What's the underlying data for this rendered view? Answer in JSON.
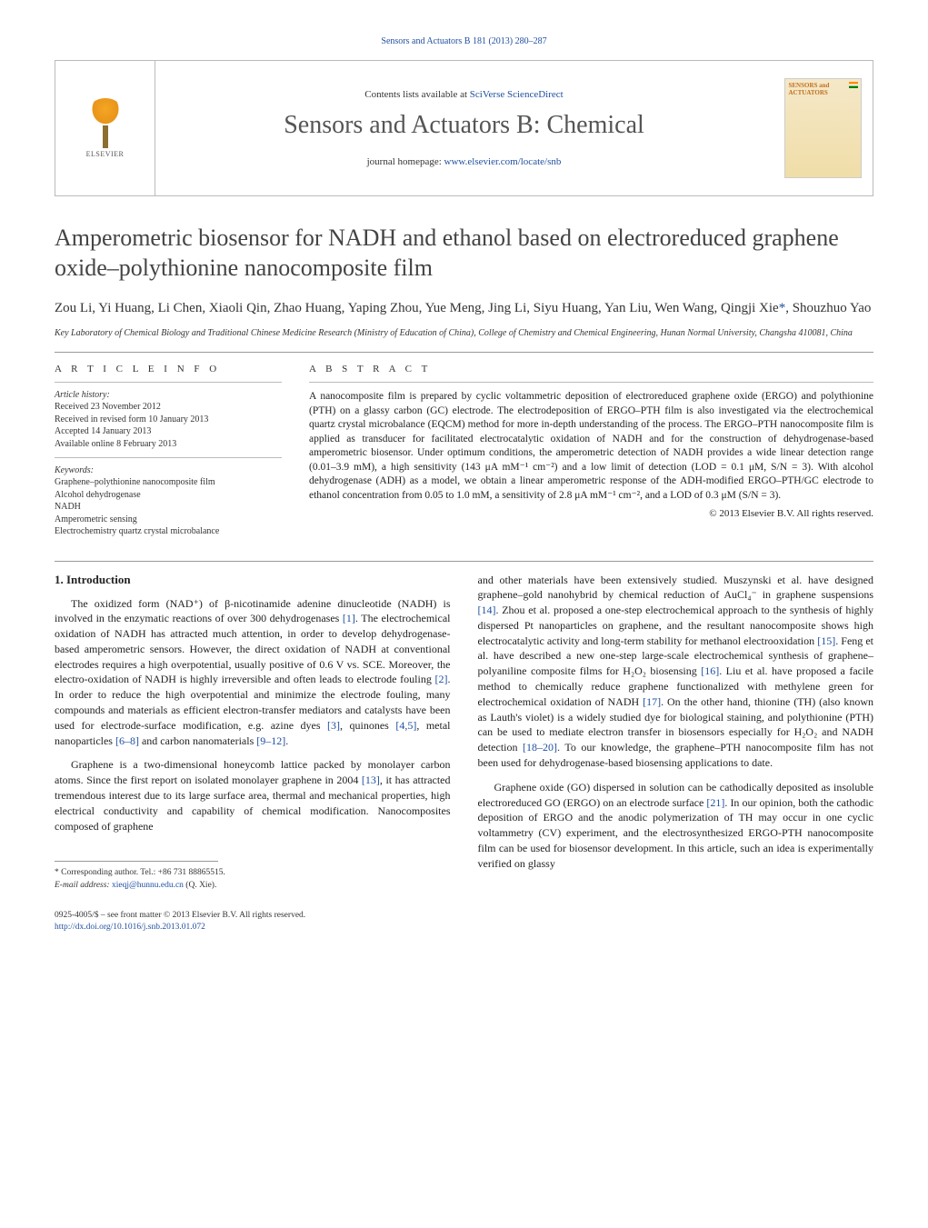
{
  "header": {
    "citation": "Sensors and Actuators B 181 (2013) 280–287",
    "contents_prefix": "Contents lists available at ",
    "contents_link": "SciVerse ScienceDirect",
    "journal_name": "Sensors and Actuators B: Chemical",
    "homepage_prefix": "journal homepage: ",
    "homepage_url": "www.elsevier.com/locate/snb",
    "elsevier_label": "ELSEVIER",
    "cover_title": "SENSORS and ACTUATORS"
  },
  "title": "Amperometric biosensor for NADH and ethanol based on electroreduced graphene oxide–polythionine nanocomposite film",
  "authors": "Zou Li, Yi Huang, Li Chen, Xiaoli Qin, Zhao Huang, Yaping Zhou, Yue Meng, Jing Li, Siyu Huang, Yan Liu, Wen Wang, Qingji Xie",
  "corr_author_suffix": "*",
  "authors_tail": ", Shouzhuo Yao",
  "affiliation": "Key Laboratory of Chemical Biology and Traditional Chinese Medicine Research (Ministry of Education of China), College of Chemistry and Chemical Engineering, Hunan Normal University, Changsha 410081, China",
  "article_info": {
    "heading": "A R T I C L E   I N F O",
    "history_label": "Article history:",
    "received": "Received 23 November 2012",
    "revised": "Received in revised form 10 January 2013",
    "accepted": "Accepted 14 January 2013",
    "online": "Available online 8 February 2013",
    "keywords_label": "Keywords:",
    "kw1": "Graphene–polythionine nanocomposite film",
    "kw2": "Alcohol dehydrogenase",
    "kw3": "NADH",
    "kw4": "Amperometric sensing",
    "kw5": "Electrochemistry quartz crystal microbalance"
  },
  "abstract": {
    "heading": "A B S T R A C T",
    "text": "A nanocomposite film is prepared by cyclic voltammetric deposition of electroreduced graphene oxide (ERGO) and polythionine (PTH) on a glassy carbon (GC) electrode. The electrodeposition of ERGO–PTH film is also investigated via the electrochemical quartz crystal microbalance (EQCM) method for more in-depth understanding of the process. The ERGO–PTH nanocomposite film is applied as transducer for facilitated electrocatalytic oxidation of NADH and for the construction of dehydrogenase-based amperometric biosensor. Under optimum conditions, the amperometric detection of NADH provides a wide linear detection range (0.01–3.9 mM), a high sensitivity (143 μA mM⁻¹ cm⁻²) and a low limit of detection (LOD = 0.1 μM, S/N = 3). With alcohol dehydrogenase (ADH) as a model, we obtain a linear amperometric response of the ADH-modified ERGO–PTH/GC electrode to ethanol concentration from 0.05 to 1.0 mM, a sensitivity of 2.8 μA mM⁻¹ cm⁻², and a LOD of 0.3 μM (S/N = 3).",
    "copyright": "© 2013 Elsevier B.V. All rights reserved."
  },
  "body": {
    "section1_heading": "1. Introduction",
    "p1_a": "The oxidized form (NAD⁺) of β-nicotinamide adenine dinucleotide (NADH) is involved in the enzymatic reactions of over 300 dehydrogenases ",
    "p1_ref1": "[1]",
    "p1_b": ". The electrochemical oxidation of NADH has attracted much attention, in order to develop dehydrogenase-based amperometric sensors. However, the direct oxidation of NADH at conventional electrodes requires a high overpotential, usually positive of 0.6 V vs. SCE. Moreover, the electro-oxidation of NADH is highly irreversible and often leads to electrode fouling ",
    "p1_ref2": "[2]",
    "p1_c": ". In order to reduce the high overpotential and minimize the electrode fouling, many compounds and materials as efficient electron-transfer mediators and catalysts have been used for electrode-surface modification, e.g. azine dyes ",
    "p1_ref3": "[3]",
    "p1_d": ", quinones ",
    "p1_ref4": "[4,5]",
    "p1_e": ", metal nanoparticles ",
    "p1_ref5": "[6–8]",
    "p1_f": " and carbon nanomaterials ",
    "p1_ref6": "[9–12]",
    "p1_g": ".",
    "p2_a": "Graphene is a two-dimensional honeycomb lattice packed by monolayer carbon atoms. Since the first report on isolated monolayer graphene in 2004 ",
    "p2_ref1": "[13]",
    "p2_b": ", it has attracted tremendous interest due to its large surface area, thermal and mechanical properties, high electrical conductivity and capability of chemical modification. Nanocomposites composed of graphene",
    "p3_a": "and other materials have been extensively studied. Muszynski et al. have designed graphene–gold nanohybrid by chemical reduction of AuCl₄⁻ in graphene suspensions ",
    "p3_ref1": "[14]",
    "p3_b": ". Zhou et al. proposed a one-step electrochemical approach to the synthesis of highly dispersed Pt nanoparticles on graphene, and the resultant nanocomposite shows high electrocatalytic activity and long-term stability for methanol electrooxidation ",
    "p3_ref2": "[15]",
    "p3_c": ". Feng et al. have described a new one-step large-scale electrochemical synthesis of graphene–polyaniline composite films for H₂O₂ biosensing ",
    "p3_ref3": "[16]",
    "p3_d": ". Liu et al. have proposed a facile method to chemically reduce graphene functionalized with methylene green for electrochemical oxidation of NADH ",
    "p3_ref4": "[17]",
    "p3_e": ". On the other hand, thionine (TH) (also known as Lauth's violet) is a widely studied dye for biological staining, and polythionine (PTH) can be used to mediate electron transfer in biosensors especially for H₂O₂ and NADH detection ",
    "p3_ref5": "[18–20]",
    "p3_f": ". To our knowledge, the graphene–PTH nanocomposite film has not been used for dehydrogenase-based biosensing applications to date.",
    "p4_a": "Graphene oxide (GO) dispersed in solution can be cathodically deposited as insoluble electroreduced GO (ERGO) on an electrode surface ",
    "p4_ref1": "[21]",
    "p4_b": ". In our opinion, both the cathodic deposition of ERGO and the anodic polymerization of TH may occur in one cyclic voltammetry (CV) experiment, and the electrosynthesized ERGO-PTH nanocomposite film can be used for biosensor development. In this article, such an idea is experimentally verified on glassy"
  },
  "footer": {
    "corr_label": "* Corresponding author. Tel.: +86 731 88865515.",
    "email_label": "E-mail address: ",
    "email": "xieqj@hunnu.edu.cn",
    "email_suffix": " (Q. Xie).",
    "issn_line": "0925-4005/$ – see front matter © 2013 Elsevier B.V. All rights reserved.",
    "doi_url": "http://dx.doi.org/10.1016/j.snb.2013.01.072"
  }
}
